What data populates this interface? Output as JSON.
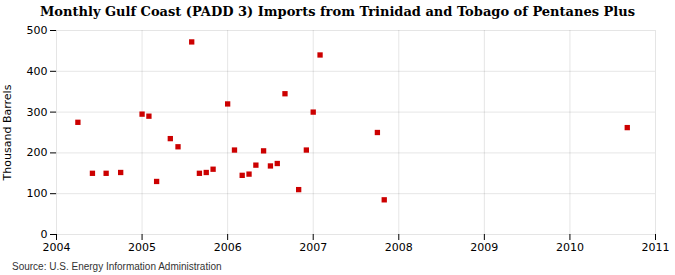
{
  "chart_data": {
    "type": "scatter",
    "title": "Monthly Gulf Coast (PADD 3) Imports from Trinidad and Tobago of Pentanes Plus",
    "ylabel": "Thousand Barrels",
    "source": "Source: U.S. Energy Information Administration",
    "x": [
      2004.25,
      2004.42,
      2004.58,
      2004.75,
      2005.0,
      2005.08,
      2005.17,
      2005.33,
      2005.42,
      2005.58,
      2005.67,
      2005.75,
      2005.83,
      2006.0,
      2006.08,
      2006.17,
      2006.25,
      2006.33,
      2006.42,
      2006.5,
      2006.58,
      2006.67,
      2006.83,
      2006.92,
      2007.0,
      2007.08,
      2007.75,
      2007.83,
      2010.67
    ],
    "values": [
      275,
      150,
      150,
      152,
      295,
      290,
      130,
      235,
      215,
      472,
      150,
      152,
      160,
      320,
      207,
      145,
      148,
      170,
      205,
      168,
      174,
      345,
      110,
      207,
      300,
      440,
      250,
      85,
      262
    ],
    "color": "#cc0000",
    "marker": "square",
    "xlim": [
      2004,
      2011
    ],
    "xticks": [
      2004,
      2005,
      2006,
      2007,
      2008,
      2009,
      2010,
      2011
    ],
    "ylim": [
      0,
      500
    ],
    "yticks": [
      0,
      100,
      200,
      300,
      400,
      500
    ],
    "grid": true
  }
}
